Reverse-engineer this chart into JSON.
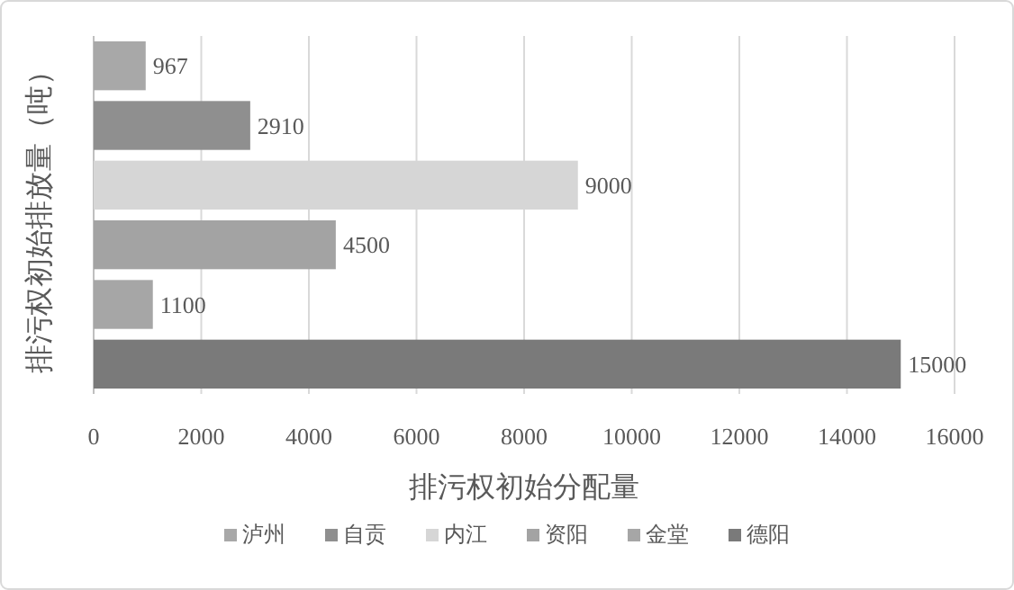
{
  "chart_data": {
    "type": "bar",
    "orientation": "horizontal",
    "xlabel": "排污权初始分配量",
    "ylabel": "排污权初始排放量（吨）",
    "categories": [
      null
    ],
    "series": [
      {
        "name": "泸州",
        "color": "#a8a8a8",
        "values": [
          967
        ]
      },
      {
        "name": "自贡",
        "color": "#8f8f8f",
        "values": [
          2910
        ]
      },
      {
        "name": "内江",
        "color": "#d6d6d6",
        "values": [
          9000
        ]
      },
      {
        "name": "资阳",
        "color": "#a3a3a3",
        "values": [
          4500
        ]
      },
      {
        "name": "金堂",
        "color": "#a6a6a6",
        "values": [
          1100
        ]
      },
      {
        "name": "德阳",
        "color": "#7a7a7a",
        "values": [
          15000
        ]
      }
    ],
    "xlim": [
      0,
      16000
    ],
    "xticks": [
      0,
      2000,
      4000,
      6000,
      8000,
      10000,
      12000,
      14000,
      16000
    ],
    "grid": "x",
    "legend": "bottom",
    "data_labels": true
  }
}
